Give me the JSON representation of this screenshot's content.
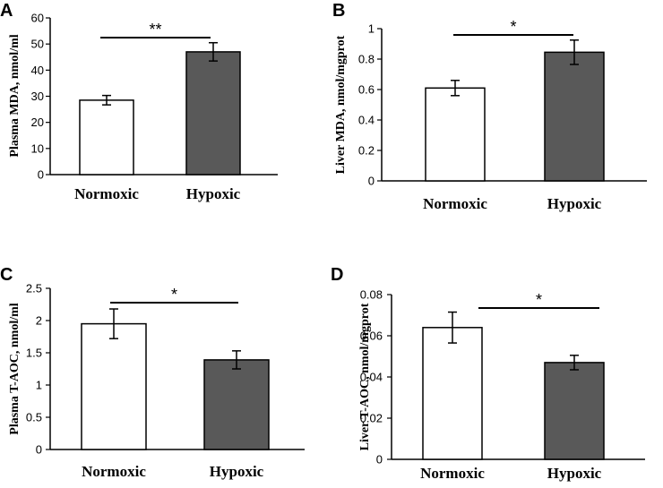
{
  "colors": {
    "normoxic": "#ffffff",
    "hypoxic": "#595959",
    "axis": "#000000"
  },
  "chart_data": [
    {
      "panel": "A",
      "type": "bar",
      "categories": [
        "Normoxic",
        "Hypoxic"
      ],
      "values": [
        28.5,
        47.0
      ],
      "errors": [
        1.8,
        3.5
      ],
      "ylabel": "Plasma MDA, nmol/ml",
      "ylim": [
        0,
        60
      ],
      "yticks": [
        "0",
        "10",
        "20",
        "30",
        "40",
        "50",
        "60"
      ],
      "significance": "**"
    },
    {
      "panel": "B",
      "type": "bar",
      "categories": [
        "Normoxic",
        "Hypoxic"
      ],
      "values": [
        0.61,
        0.845
      ],
      "errors": [
        0.05,
        0.08
      ],
      "ylabel": "Liver MDA, nmol/mgprot",
      "ylim": [
        0,
        1
      ],
      "yticks": [
        "0",
        "0.2",
        "0.4",
        "0.6",
        "0.8",
        "1"
      ],
      "significance": "*"
    },
    {
      "panel": "C",
      "type": "bar",
      "categories": [
        "Normoxic",
        "Hypoxic"
      ],
      "values": [
        1.95,
        1.39
      ],
      "errors": [
        0.23,
        0.14
      ],
      "ylabel": "Plasma T-AOC, nmol/ml",
      "ylim": [
        0,
        2.5
      ],
      "yticks": [
        "0",
        "0.5",
        "1",
        "1.5",
        "2",
        "2.5"
      ],
      "significance": "*"
    },
    {
      "panel": "D",
      "type": "bar",
      "categories": [
        "Normoxic",
        "Hypoxic"
      ],
      "values": [
        0.064,
        0.047
      ],
      "errors": [
        0.0075,
        0.0035
      ],
      "ylabel": "Liver T-AOC, nmol/mgprot",
      "ylim": [
        0,
        0.08
      ],
      "yticks": [
        "0",
        "0.02",
        "0.04",
        "0.06",
        "0.08"
      ],
      "significance": "*"
    }
  ]
}
